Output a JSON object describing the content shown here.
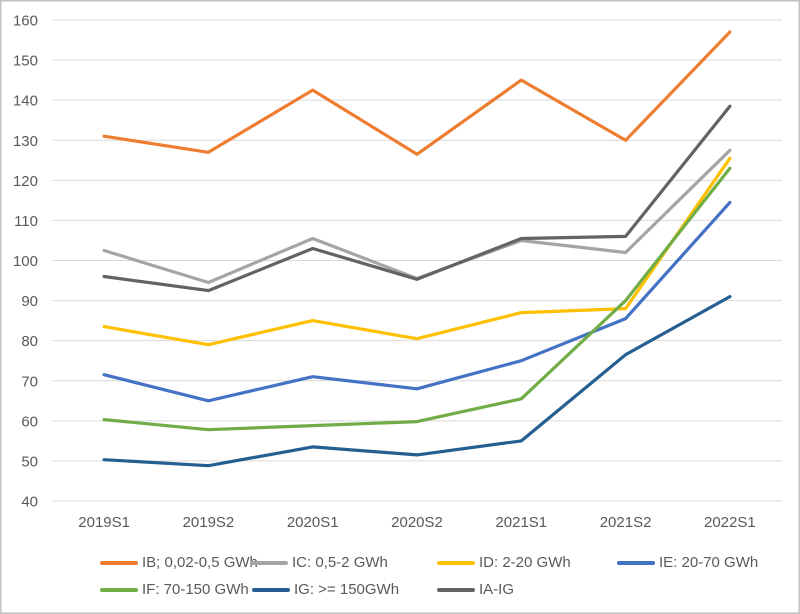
{
  "chart_data": {
    "type": "line",
    "title": "",
    "xlabel": "",
    "ylabel": "",
    "categories": [
      "2019S1",
      "2019S2",
      "2020S1",
      "2020S2",
      "2021S1",
      "2021S2",
      "2022S1"
    ],
    "series": [
      {
        "id": "ib",
        "name": "IB; 0,02-0,5 GWh",
        "color": "#ED7D31",
        "values": [
          131,
          127,
          142.5,
          126.5,
          145,
          130,
          157
        ]
      },
      {
        "id": "ic",
        "name": "IC: 0,5-2 GWh",
        "color": "#A5A5A5",
        "values": [
          102.5,
          94.5,
          105.5,
          95.5,
          105,
          102,
          127.5
        ]
      },
      {
        "id": "id",
        "name": "ID: 2-20 GWh",
        "color": "#FFC000",
        "values": [
          83.5,
          79,
          85,
          80.5,
          87,
          88,
          125.5
        ]
      },
      {
        "id": "ie",
        "name": "IE: 20-70 GWh",
        "color": "#4472C4",
        "values": [
          71.5,
          65,
          71,
          68,
          75,
          85.5,
          114.5
        ]
      },
      {
        "id": "if",
        "name": "IF: 70-150 GWh",
        "color": "#70AD47",
        "values": [
          60.3,
          57.8,
          58.8,
          59.8,
          65.5,
          90,
          123
        ]
      },
      {
        "id": "ig",
        "name": "IG: >= 150GWh",
        "color": "#255E91",
        "values": [
          50.3,
          48.8,
          53.5,
          51.5,
          55,
          76.5,
          91
        ]
      },
      {
        "id": "ia-ig",
        "name": "IA-IG",
        "color": "#636363",
        "values": [
          96,
          92.5,
          103,
          95.3,
          105.5,
          106,
          138.5
        ]
      }
    ],
    "y_axis": {
      "min": 40,
      "max": 160,
      "step": 10,
      "tick_labels": [
        "40",
        "50",
        "60",
        "70",
        "80",
        "90",
        "100",
        "110",
        "120",
        "130",
        "140",
        "150",
        "160"
      ]
    },
    "x_axis": {
      "tick_labels": [
        "2019S1",
        "2019S2",
        "2020S1",
        "2020S2",
        "2021S1",
        "2021S2",
        "2022S1"
      ]
    },
    "grid": "horizontal",
    "legend_position": "bottom",
    "legend_rows": [
      [
        "ib",
        "ic",
        "id",
        "ie"
      ],
      [
        "if",
        "ig",
        "ia-ig"
      ]
    ]
  },
  "style_colors": {
    "background": "#FFFFFF",
    "gridline": "#D9D9D9",
    "axis_label": "#595959",
    "legend_label": "#595959",
    "chart_border": "#C4C4C4"
  }
}
